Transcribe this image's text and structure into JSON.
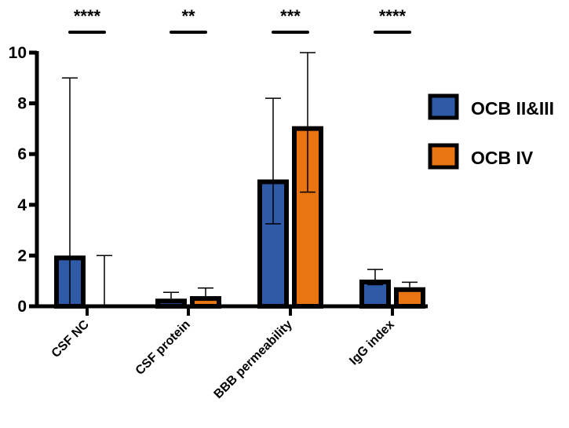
{
  "chart_data": {
    "type": "bar",
    "title": "",
    "xlabel": "",
    "ylabel": "",
    "ylim": [
      0,
      10
    ],
    "yticks": [
      0,
      2,
      4,
      6,
      8,
      10
    ],
    "categories": [
      "CSF NC",
      "CSF protein",
      "BBB permeability",
      "IgG index"
    ],
    "series": [
      {
        "name": "OCB  II&III",
        "color": "#2f5aa8",
        "values": [
          2,
          0.3,
          5.0,
          1.05
        ],
        "err_low": [
          0,
          0.3,
          3.25,
          0.85
        ],
        "err_high": [
          9,
          0.55,
          8.2,
          1.45
        ]
      },
      {
        "name": "OCB IV",
        "color": "#e87511",
        "values": [
          0,
          0.4,
          7.1,
          0.75
        ],
        "err_low": [
          0,
          0.4,
          4.5,
          0.75
        ],
        "err_high": [
          2,
          0.72,
          10,
          0.95
        ]
      }
    ],
    "significance": [
      "****",
      "**",
      "***",
      "****"
    ],
    "legend_position": "top-right",
    "grid": false
  }
}
